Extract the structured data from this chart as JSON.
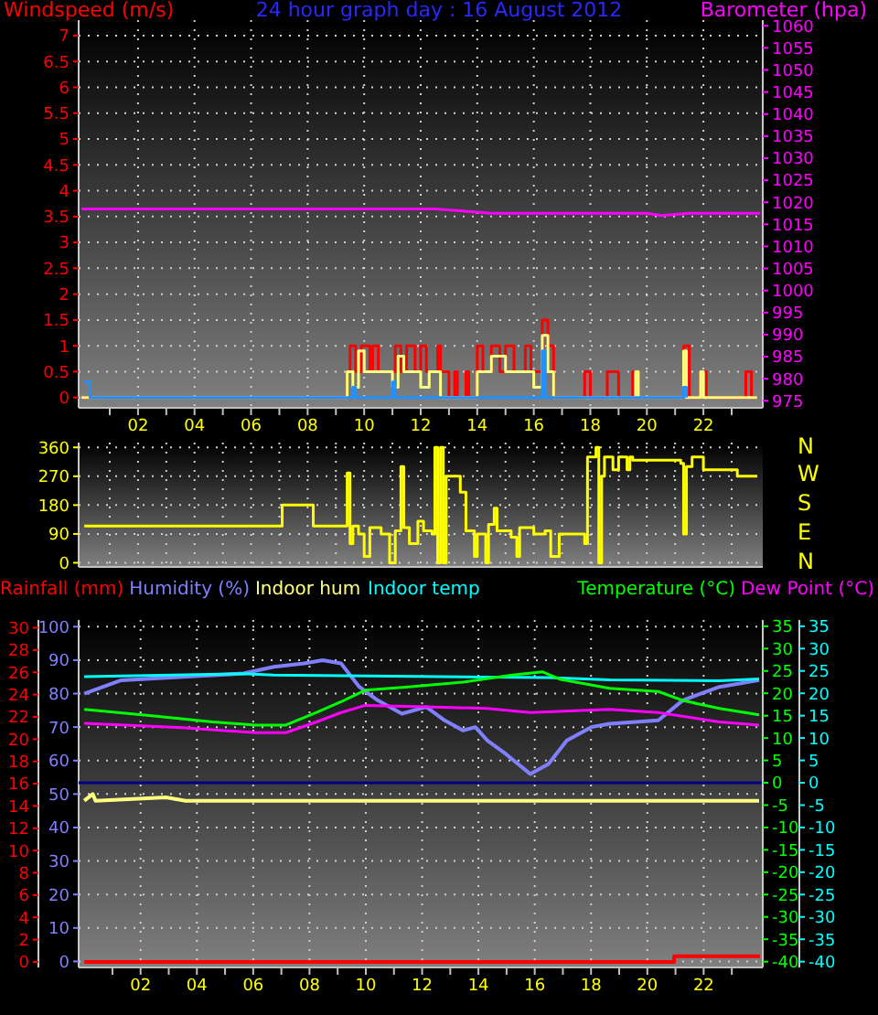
{
  "chart_data": [
    {
      "type": "step",
      "title": "24 hour graph day : 16 August 2012",
      "ylabel": "Windspeed (m/s)",
      "y2label": "Barometer (hpa)",
      "xlim": [
        -0.1,
        24.1
      ],
      "ylim": [
        -0.2,
        7.3
      ],
      "y2lim": [
        973.4,
        1061.3
      ],
      "grid": true,
      "xticks": [
        {
          "value": 1,
          "label": null
        },
        {
          "value": 2,
          "label": "02"
        },
        {
          "value": 3,
          "label": null
        },
        {
          "value": 4,
          "label": "04"
        },
        {
          "value": 5,
          "label": null
        },
        {
          "value": 6,
          "label": "06"
        },
        {
          "value": 7,
          "label": null
        },
        {
          "value": 8,
          "label": "08"
        },
        {
          "value": 9,
          "label": null
        },
        {
          "value": 10,
          "label": "10"
        },
        {
          "value": 11,
          "label": null
        },
        {
          "value": 12,
          "label": "12"
        },
        {
          "value": 13,
          "label": null
        },
        {
          "value": 14,
          "label": "14"
        },
        {
          "value": 15,
          "label": null
        },
        {
          "value": 16,
          "label": "16"
        },
        {
          "value": 17,
          "label": null
        },
        {
          "value": 18,
          "label": "18"
        },
        {
          "value": 19,
          "label": null
        },
        {
          "value": 20,
          "label": "20"
        },
        {
          "value": 21,
          "label": null
        },
        {
          "value": 22,
          "label": "22"
        },
        {
          "value": 23,
          "label": null
        }
      ],
      "yticks": [
        0,
        0.5,
        1,
        1.5,
        2,
        2.5,
        3,
        3.5,
        4,
        4.5,
        5,
        5.5,
        6,
        6.5,
        7
      ],
      "y2ticks": [
        975,
        980,
        985,
        990,
        995,
        1000,
        1005,
        1010,
        1015,
        1020,
        1025,
        1030,
        1035,
        1040,
        1045,
        1050,
        1055,
        1060
      ],
      "series": [
        {
          "color": "#ff0000",
          "x": [
            0,
            9.4,
            9.5,
            9.7,
            9.9,
            10.2,
            10.3,
            10.5,
            11.1,
            11.3,
            11.5,
            11.8,
            12.0,
            12.2,
            12.6,
            12.7,
            13.0,
            13.2,
            13.3,
            13.6,
            13.7,
            14.0,
            14.2,
            14.5,
            14.8,
            15.0,
            15.3,
            15.7,
            15.9,
            16.3,
            16.5,
            16.7,
            17.8,
            18.0,
            18.6,
            19.0,
            19.5,
            19.7,
            21.3,
            21.5,
            21.9,
            22.1,
            23.5,
            23.7,
            23.9
          ],
          "values": [
            0,
            0.5,
            1,
            0.5,
            1,
            0.5,
            1,
            0.5,
            1,
            0.5,
            1,
            0.5,
            1,
            0.5,
            1,
            0.5,
            0,
            0.5,
            0,
            0.5,
            0,
            1,
            0.5,
            1,
            0.5,
            1,
            0.5,
            1,
            0.5,
            1.5,
            1,
            0,
            0.5,
            0,
            0.5,
            0,
            0.5,
            0,
            1,
            0,
            0.5,
            0,
            0.5,
            0,
            0
          ]
        },
        {
          "color": "#ffff80",
          "x": [
            0,
            9.4,
            9.6,
            9.8,
            10.0,
            11.0,
            11.2,
            11.4,
            12.0,
            12.3,
            12.7,
            14.0,
            14.5,
            15.0,
            16.0,
            16.3,
            16.5,
            16.7,
            19.6,
            19.7,
            21.3,
            21.4,
            21.9,
            22.0,
            23.9
          ],
          "values": [
            0,
            0.5,
            0.2,
            0.9,
            0.5,
            0.2,
            0.8,
            0.5,
            0.2,
            0.5,
            0,
            0.5,
            0.8,
            0.5,
            0.2,
            1.2,
            0.5,
            0,
            0.5,
            0,
            0.9,
            0,
            0.5,
            0,
            0
          ]
        },
        {
          "color": "#2090ff",
          "x": [
            0.1,
            0.3,
            9.6,
            9.7,
            11.0,
            11.1,
            16.3,
            16.4,
            21.3,
            21.4
          ],
          "values": [
            0.3,
            0,
            0.2,
            0,
            0.3,
            0,
            0.9,
            0,
            0.2,
            0
          ]
        },
        {
          "type": "line",
          "axis": "y2",
          "color": "#ff00ff",
          "x": [
            0,
            12.5,
            13.5,
            14.5,
            20,
            20.5,
            21.5,
            24
          ],
          "values": [
            1018.5,
            1018.5,
            1018,
            1017.5,
            1017.5,
            1017,
            1017.5,
            1017.5
          ]
        }
      ]
    },
    {
      "type": "step",
      "xlim": [
        -0.1,
        24.1
      ],
      "ylim": [
        -13,
        375
      ],
      "grid": true,
      "tick_labels": "y",
      "xticks": [
        1,
        2,
        3,
        4,
        5,
        6,
        7,
        8,
        9,
        10,
        11,
        12,
        13,
        14,
        15,
        16,
        17,
        18,
        19,
        20,
        21,
        22,
        23
      ],
      "yticks": [
        0,
        90,
        180,
        270,
        360
      ],
      "annotations": [
        "N",
        "W",
        "S",
        "E",
        "N"
      ],
      "series": [
        {
          "color": "#ffff00",
          "x": [
            0.1,
            7.1,
            8.2,
            9.4,
            9.5,
            9.6,
            9.8,
            10.0,
            10.2,
            10.6,
            10.9,
            11.1,
            11.3,
            11.4,
            11.6,
            11.9,
            12.1,
            12.4,
            12.5,
            12.6,
            12.7,
            12.8,
            12.9,
            13.4,
            13.6,
            13.9,
            14.0,
            14.3,
            14.4,
            14.6,
            14.7,
            15.2,
            15.4,
            15.5,
            16.0,
            16.4,
            16.6,
            16.9,
            17.8,
            17.9,
            18.2,
            18.3,
            18.4,
            18.5,
            18.8,
            19.0,
            19.3,
            19.4,
            19.5,
            21.2,
            21.3,
            21.4,
            21.6,
            22.0,
            23.2,
            23.9
          ],
          "values": [
            115,
            180,
            115,
            280,
            60,
            115,
            90,
            20,
            110,
            90,
            0,
            100,
            300,
            110,
            60,
            130,
            100,
            90,
            360,
            0,
            360,
            0,
            270,
            220,
            100,
            20,
            90,
            0,
            120,
            170,
            100,
            80,
            20,
            110,
            90,
            100,
            20,
            90,
            60,
            330,
            360,
            0,
            270,
            330,
            290,
            330,
            290,
            330,
            320,
            310,
            90,
            300,
            330,
            290,
            270,
            270
          ]
        }
      ]
    },
    {
      "type": "line",
      "xlim": [
        -0.2,
        24.1
      ],
      "ylim": [
        -1.8,
        102
      ],
      "y3lim": [
        -0.5,
        30.7
      ],
      "grid": true,
      "legend": "top",
      "xticks": [
        {
          "value": 1,
          "label": null
        },
        {
          "value": 2,
          "label": "02"
        },
        {
          "value": 3,
          "label": null
        },
        {
          "value": 4,
          "label": "04"
        },
        {
          "value": 5,
          "label": null
        },
        {
          "value": 6,
          "label": "06"
        },
        {
          "value": 7,
          "label": null
        },
        {
          "value": 8,
          "label": "08"
        },
        {
          "value": 9,
          "label": null
        },
        {
          "value": 10,
          "label": "10"
        },
        {
          "value": 11,
          "label": null
        },
        {
          "value": 12,
          "label": "12"
        },
        {
          "value": 13,
          "label": null
        },
        {
          "value": 14,
          "label": "14"
        },
        {
          "value": 15,
          "label": null
        },
        {
          "value": 16,
          "label": "16"
        },
        {
          "value": 17,
          "label": null
        },
        {
          "value": 18,
          "label": "18"
        },
        {
          "value": 19,
          "label": null
        },
        {
          "value": 20,
          "label": "20"
        },
        {
          "value": 21,
          "label": null
        },
        {
          "value": 22,
          "label": "22"
        },
        {
          "value": 23,
          "label": null
        }
      ],
      "yticks": [
        0,
        10,
        20,
        30,
        40,
        50,
        60,
        70,
        80,
        90,
        100
      ],
      "y3ticks": [
        0,
        2,
        4,
        6,
        8,
        10,
        12,
        14,
        16,
        18,
        20,
        22,
        24,
        26,
        28,
        30
      ],
      "series": [
        {
          "name": "Rainfall (mm)",
          "type": "step",
          "axis": "y3",
          "color": "#ff0000",
          "x": [
            0,
            20.95,
            24
          ],
          "values": [
            0,
            0.5,
            0.5
          ]
        },
        {
          "name": "Humidity (%)",
          "color": "#8080ff",
          "x": [
            0,
            1.31,
            3.48,
            5.65,
            6.73,
            7.81,
            8.47,
            9.12,
            9.77,
            10.42,
            11.28,
            12.15,
            12.8,
            13.45,
            13.89,
            14.32,
            14.97,
            15.84,
            16.49,
            17.14,
            18.01,
            18.66,
            20.39,
            21.26,
            22.56,
            23.97
          ],
          "values": [
            80,
            84,
            85,
            86,
            88,
            89,
            90,
            89,
            82,
            78,
            74,
            76,
            72,
            69,
            70,
            66,
            62,
            56,
            59,
            66,
            70,
            71,
            72,
            78,
            82,
            84
          ]
        },
        {
          "name": "Indoor hum",
          "color": "#ffff80",
          "x": [
            0,
            0.3,
            0.4,
            2.9,
            3.6,
            23.97
          ],
          "values": [
            48,
            50,
            48,
            49,
            48,
            48
          ]
        }
      ]
    },
    {
      "type": "line",
      "xlim": [
        -0.2,
        24.1
      ],
      "ylim": [
        -41.3,
        36.4
      ],
      "y2lim": [
        -41.3,
        36.4
      ],
      "legend": "top",
      "tick_labels": "y",
      "xticks": [
        1,
        2,
        3,
        4,
        5,
        6,
        7,
        8,
        9,
        10,
        11,
        12,
        13,
        14,
        15,
        16,
        17,
        18,
        19,
        20,
        21,
        22,
        23
      ],
      "yticks": [
        -40,
        -35,
        -30,
        -25,
        -20,
        -15,
        -10,
        -5,
        0,
        5,
        10,
        15,
        20,
        25,
        30,
        35
      ],
      "y2ticks": [
        -40,
        -35,
        -30,
        -25,
        -20,
        -15,
        -10,
        -5,
        0,
        5,
        10,
        15,
        20,
        25,
        30,
        35
      ],
      "ref_lines": [
        {
          "axis": "y",
          "value": 0,
          "color": "#000080"
        }
      ],
      "series": [
        {
          "name": "Indoor temp",
          "axis": "y2",
          "color": "#00ffff",
          "x": [
            0,
            5.65,
            6.73,
            16.49,
            18.66,
            22.56,
            23.97
          ],
          "values": [
            23.7,
            24.4,
            24.1,
            23.5,
            23.0,
            22.8,
            23.2
          ]
        },
        {
          "name": "Temperature (°C)",
          "color": "#00ff00",
          "x": [
            0,
            2.39,
            4.56,
            6.08,
            7.16,
            8.25,
            9.12,
            9.98,
            11.5,
            13.45,
            15.19,
            16.27,
            16.92,
            18.66,
            20.39,
            21.26,
            22.56,
            23.97
          ],
          "values": [
            16.4,
            15.0,
            13.6,
            12.9,
            12.9,
            15.7,
            18.1,
            20.7,
            21.4,
            22.5,
            24.1,
            24.8,
            23.1,
            21.1,
            20.4,
            18.4,
            16.6,
            15.2
          ]
        },
        {
          "name": "Dew Point (°C)",
          "color": "#ff00ff",
          "x": [
            0,
            3.48,
            6.08,
            7.16,
            8.25,
            9.12,
            9.98,
            12.15,
            14.32,
            15.84,
            18.66,
            20.39,
            22.56,
            23.97
          ],
          "values": [
            13.3,
            12.3,
            11.2,
            11.2,
            13.6,
            15.7,
            17.3,
            17.0,
            16.6,
            15.7,
            16.4,
            15.7,
            13.6,
            12.9
          ]
        }
      ]
    }
  ]
}
